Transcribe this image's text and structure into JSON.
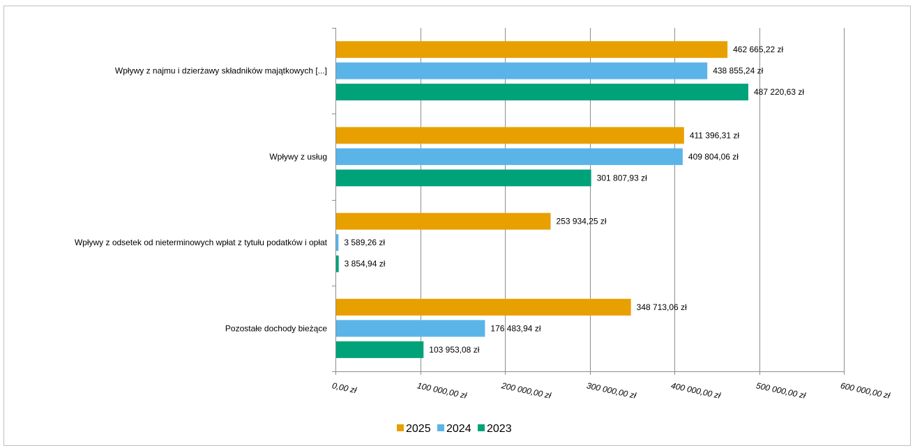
{
  "chart_data": {
    "type": "bar",
    "orientation": "horizontal",
    "categories": [
      "Wpływy z najmu i dzierżawy składników majątkowych [...]",
      "Wpływy z usług",
      "Wpływy z odsetek od nieterminowych wpłat z tytułu podatków i opłat",
      "Pozostałe dochody bieżące"
    ],
    "series": [
      {
        "name": "2025",
        "color": "#E8A000",
        "values": [
          462665.22,
          411396.31,
          253934.25,
          348713.06
        ],
        "labels": [
          "462 665,22 zł",
          "411 396,31 zł",
          "253 934,25 zł",
          "348 713,06 zł"
        ]
      },
      {
        "name": "2024",
        "color": "#5BB4E8",
        "values": [
          438855.24,
          409804.06,
          3589.26,
          176483.94
        ],
        "labels": [
          "438 855,24 zł",
          "409 804,06 zł",
          "3 589,26 zł",
          "176 483,94 zł"
        ]
      },
      {
        "name": "2023",
        "color": "#00A27A",
        "values": [
          487220.63,
          301807.93,
          3854.94,
          103953.08
        ],
        "labels": [
          "487 220,63 zł",
          "301 807,93 zł",
          "3 854,94 zł",
          "103 953,08 zł"
        ]
      }
    ],
    "xlim": [
      0,
      600000
    ],
    "xticks": [
      0,
      100000,
      200000,
      300000,
      400000,
      500000,
      600000
    ],
    "xtick_labels": [
      "0,00 zł",
      "100 000,00 zł",
      "200 000,00 zł",
      "300 000,00 zł",
      "400 000,00 zł",
      "500 000,00 zł",
      "600 000,00 zł"
    ],
    "grid": true,
    "legend": "bottom-center",
    "title": "",
    "xlabel": "",
    "ylabel": ""
  }
}
